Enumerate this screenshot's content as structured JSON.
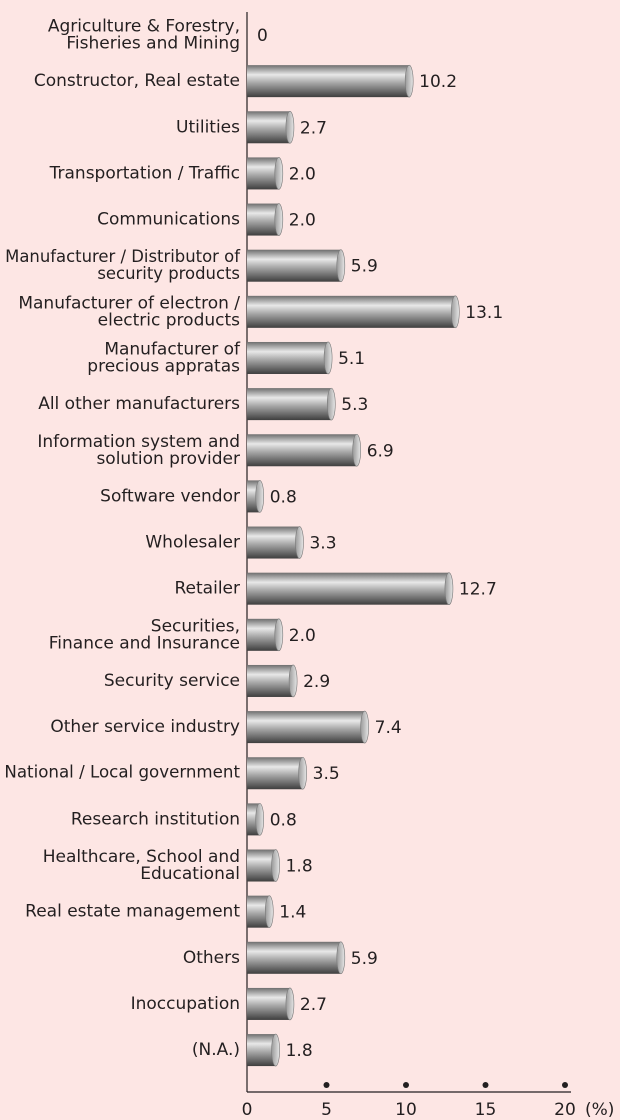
{
  "chart_data": {
    "type": "barh",
    "categories": [
      "Agriculture & Forestry,\nFisheries and Mining",
      "Constructor, Real estate",
      "Utilities",
      "Transportation / Traffic",
      "Communications",
      "Manufacturer / Distributor of\nsecurity products",
      "Manufacturer of electron /\nelectric products",
      "Manufacturer of\nprecious appratas",
      "All other manufacturers",
      "Information system and\nsolution provider",
      "Software vendor",
      "Wholesaler",
      "Retailer",
      "Securities,\nFinance and Insurance",
      "Security service",
      "Other service industry",
      "National / Local government",
      "Research institution",
      "Healthcare, School and\nEducational",
      "Real estate management",
      "Others",
      "Inoccupation",
      "(N.A.)"
    ],
    "values": [
      0,
      10.2,
      2.7,
      2.0,
      2.0,
      5.9,
      13.1,
      5.1,
      5.3,
      6.9,
      0.8,
      3.3,
      12.7,
      2.0,
      2.9,
      7.4,
      3.5,
      0.8,
      1.8,
      1.4,
      5.9,
      2.7,
      1.8
    ],
    "value_labels": [
      "0",
      "10.2",
      "2.7",
      "2.0",
      "2.0",
      "5.9",
      "13.1",
      "5.1",
      "5.3",
      "6.9",
      "0.8",
      "3.3",
      "12.7",
      "2.0",
      "2.9",
      "7.4",
      "3.5",
      "0.8",
      "1.8",
      "1.4",
      "5.9",
      "2.7",
      "1.8"
    ],
    "color": "#8c8c8c",
    "xlim": [
      0,
      20
    ],
    "xticks": [
      0,
      5,
      10,
      15,
      20
    ],
    "xlabel": "(%)"
  }
}
